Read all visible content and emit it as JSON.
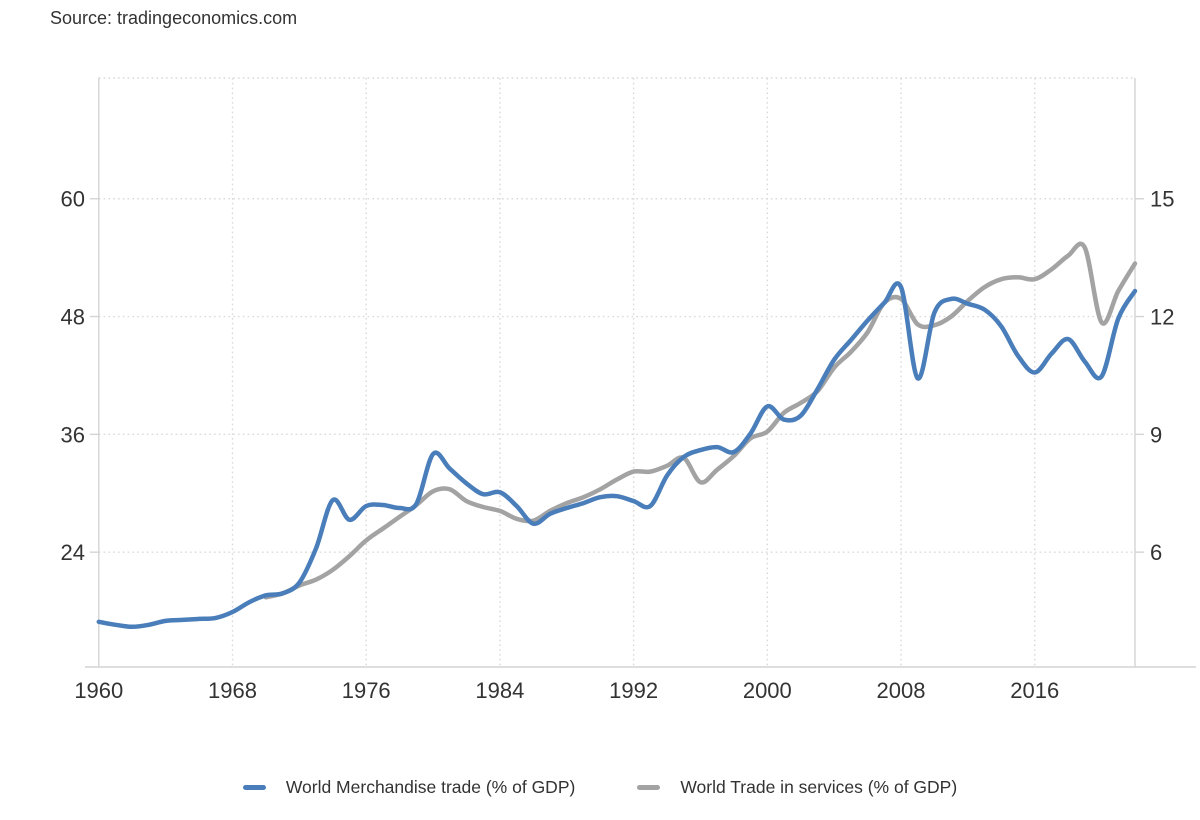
{
  "page": {
    "source_label": "Source: tradingeconomics.com"
  },
  "chart_data": {
    "type": "line",
    "title": "",
    "xlabel": "",
    "ylabel_left": "",
    "ylabel_right": "",
    "grid": "dotted",
    "legend_position": "bottom-center",
    "xlim": [
      1960,
      2022
    ],
    "x_tick_years": [
      1960,
      1968,
      1976,
      1984,
      1992,
      2000,
      2008,
      2016
    ],
    "x_tick_labels": [
      "1960",
      "1968",
      "1976",
      "1984",
      "1992",
      "2000",
      "2008",
      "2016"
    ],
    "left_axis": {
      "ticks": [
        24,
        36,
        48,
        60
      ],
      "tick_labels": [
        "24",
        "36",
        "48",
        "60"
      ],
      "range": [
        12.3,
        72.3
      ]
    },
    "right_axis": {
      "ticks": [
        6,
        9,
        12,
        15
      ],
      "tick_labels": [
        "6",
        "9",
        "12",
        "15"
      ],
      "range": [
        3.075,
        18.075
      ]
    },
    "colors": {
      "merchandise_line": "#4a7eba",
      "services_line": "#a3a3a3",
      "grid_line": "#d9d9d9",
      "axis_line": "#d4d4d4",
      "axis_text": "#333333",
      "background": "#ffffff"
    },
    "series": [
      {
        "name": "World Merchandise trade (% of GDP)",
        "axis": "left",
        "color": "#4a7eba",
        "years": [
          1960,
          1961,
          1962,
          1963,
          1964,
          1965,
          1966,
          1967,
          1968,
          1969,
          1970,
          1971,
          1972,
          1973,
          1974,
          1975,
          1976,
          1977,
          1978,
          1979,
          1980,
          1981,
          1982,
          1983,
          1984,
          1985,
          1986,
          1987,
          1988,
          1989,
          1990,
          1991,
          1992,
          1993,
          1994,
          1995,
          1996,
          1997,
          1998,
          1999,
          2000,
          2001,
          2002,
          2003,
          2004,
          2005,
          2006,
          2007,
          2008,
          2009,
          2010,
          2011,
          2012,
          2013,
          2014,
          2015,
          2016,
          2017,
          2018,
          2019,
          2020,
          2021,
          2022
        ],
        "values": [
          16.9,
          16.6,
          16.4,
          16.6,
          17.0,
          17.1,
          17.2,
          17.3,
          17.9,
          18.9,
          19.6,
          19.8,
          20.9,
          24.4,
          29.3,
          27.3,
          28.7,
          28.8,
          28.5,
          28.9,
          34.0,
          32.5,
          31.0,
          29.9,
          30.1,
          28.7,
          26.9,
          27.9,
          28.5,
          29.0,
          29.6,
          29.7,
          29.2,
          28.7,
          31.8,
          33.7,
          34.4,
          34.7,
          34.2,
          36.1,
          38.85,
          37.5,
          37.9,
          40.6,
          43.6,
          45.6,
          47.6,
          49.4,
          51.0,
          41.7,
          48.4,
          49.8,
          49.3,
          48.7,
          47.0,
          44.0,
          42.3,
          44.2,
          45.7,
          43.4,
          41.9,
          47.8,
          50.6
        ]
      },
      {
        "name": "World Trade in services (% of GDP)",
        "axis": "right",
        "color": "#a3a3a3",
        "years": [
          1970,
          1971,
          1972,
          1973,
          1974,
          1975,
          1976,
          1977,
          1978,
          1979,
          1980,
          1981,
          1982,
          1983,
          1984,
          1985,
          1986,
          1987,
          1988,
          1989,
          1990,
          1991,
          1992,
          1993,
          1994,
          1995,
          1996,
          1997,
          1998,
          1999,
          2000,
          2001,
          2002,
          2003,
          2004,
          2005,
          2006,
          2007,
          2008,
          2009,
          2010,
          2011,
          2012,
          2013,
          2014,
          2015,
          2016,
          2017,
          2018,
          2019,
          2020,
          2021,
          2022
        ],
        "values": [
          4.85,
          4.95,
          5.15,
          5.3,
          5.55,
          5.9,
          6.3,
          6.6,
          6.9,
          7.2,
          7.55,
          7.6,
          7.3,
          7.15,
          7.05,
          6.85,
          6.8,
          7.05,
          7.25,
          7.4,
          7.6,
          7.85,
          8.05,
          8.05,
          8.2,
          8.4,
          7.78,
          8.1,
          8.45,
          8.9,
          9.07,
          9.55,
          9.8,
          10.1,
          10.7,
          11.1,
          11.6,
          12.35,
          12.45,
          11.8,
          11.78,
          12.0,
          12.4,
          12.75,
          12.95,
          13.0,
          12.95,
          13.2,
          13.55,
          13.75,
          11.85,
          12.65,
          13.35
        ]
      }
    ],
    "legend": [
      "World Merchandise trade (% of GDP)",
      "World Trade in services (% of GDP)"
    ]
  }
}
